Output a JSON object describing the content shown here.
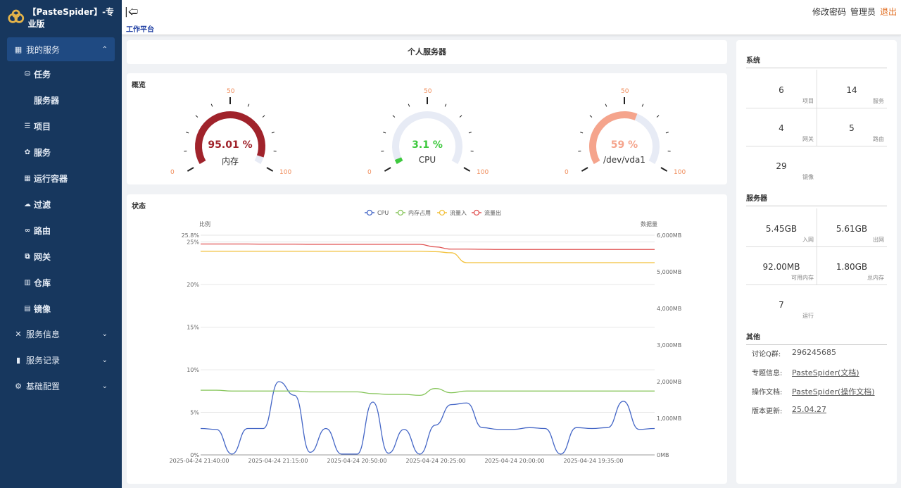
{
  "brand": {
    "title": "【PasteSpider】-专业版"
  },
  "sidebar": {
    "group_services": "我的服务",
    "items": [
      {
        "label": "任务",
        "icon": "database-icon"
      },
      {
        "label": "服务器",
        "icon": ""
      },
      {
        "label": "项目",
        "icon": "list-icon"
      },
      {
        "label": "服务",
        "icon": "ribbon-icon"
      },
      {
        "label": "运行容器",
        "icon": "grid-icon"
      },
      {
        "label": "过滤",
        "icon": "cloud-icon"
      },
      {
        "label": "路由",
        "icon": "link-icon"
      },
      {
        "label": "网关",
        "icon": "external-icon"
      },
      {
        "label": "仓库",
        "icon": "archive-icon"
      },
      {
        "label": "镜像",
        "icon": "bag-icon"
      }
    ],
    "group_info": "服务信息",
    "group_records": "服务记录",
    "group_config": "基础配置"
  },
  "topbar": {
    "breadcrumb": "工作平台",
    "change_password": "修改密码",
    "admin": "管理员",
    "logout": "退出"
  },
  "main": {
    "title": "个人服务器",
    "overview": "概览",
    "status": "状态"
  },
  "gauges": [
    {
      "value": "95.01 %",
      "level": 95.01,
      "name": "内存",
      "color": "#a0232b",
      "min": "0",
      "mid": "50",
      "max": "100"
    },
    {
      "value": "3.1 %",
      "level": 3.1,
      "name": "CPU",
      "color": "#3ec93e",
      "min": "0",
      "mid": "50",
      "max": "100"
    },
    {
      "value": "59 %",
      "level": 59,
      "name": "/dev/vda1",
      "color": "#f5a48c",
      "min": "0",
      "mid": "50",
      "max": "100"
    }
  ],
  "chart_data": {
    "type": "line",
    "legend": [
      "CPU",
      "内存占用",
      "流量入",
      "流量出"
    ],
    "ylabel_left": "比例",
    "ylabel_right": "数据量",
    "y_left_ticks": [
      "25.8%",
      "25%",
      "20%",
      "15%",
      "10%",
      "5%",
      "0%"
    ],
    "y_right_ticks": [
      "6,000MB",
      "5,000MB",
      "4,000MB",
      "3,000MB",
      "2,000MB",
      "1,000MB",
      "0MB"
    ],
    "y_left_values": [
      25.8,
      25,
      20,
      15,
      10,
      5,
      0
    ],
    "y_right_values": [
      6000,
      5000,
      4000,
      3000,
      2000,
      1000,
      0
    ],
    "ylim_left": [
      0,
      25.8
    ],
    "ylim_right": [
      0,
      6000
    ],
    "x_labels": [
      "2025-04-24 21:40:00",
      "2025-04-24 21:15:00",
      "2025-04-24 20:50:00",
      "2025-04-24 20:25:00",
      "2025-04-24 20:00:00",
      "2025-04-24 19:35:00"
    ],
    "series": [
      {
        "name": "CPU",
        "color": "#4466c6",
        "axis": "left",
        "values": [
          3.1,
          3.0,
          0.1,
          3.1,
          3.1,
          8.6,
          7.0,
          0.3,
          3.1,
          0.1,
          0.1,
          6.2,
          0.2,
          3.0,
          0.1,
          3.5,
          5.9,
          6.1,
          3.2,
          3.0,
          3.0,
          3.2,
          3.1,
          0.1,
          3.2,
          3.1,
          3.2,
          6.3,
          3.0,
          3.1
        ]
      },
      {
        "name": "内存占用",
        "color": "#86c55a",
        "axis": "left",
        "values": [
          7.6,
          7.6,
          7.5,
          7.5,
          7.5,
          7.5,
          7.5,
          7.4,
          7.4,
          7.4,
          7.4,
          7.2,
          7.1,
          7.1,
          7.0,
          7.8,
          7.3,
          7.5,
          7.5,
          7.5,
          7.5,
          7.5,
          7.5,
          7.5,
          7.5,
          7.5,
          7.5,
          7.5,
          7.5,
          7.5
        ]
      },
      {
        "name": "流量入",
        "color": "#f2c13b",
        "axis": "right",
        "values": [
          5560,
          5560,
          5560,
          5560,
          5560,
          5560,
          5560,
          5560,
          5560,
          5560,
          5560,
          5560,
          5560,
          5560,
          5560,
          5550,
          5520,
          5250,
          5250,
          5250,
          5250,
          5250,
          5250,
          5250,
          5250,
          5250,
          5250,
          5250,
          5250,
          5250
        ]
      },
      {
        "name": "流量出",
        "color": "#e05252",
        "axis": "right",
        "values": [
          5760,
          5760,
          5760,
          5760,
          5755,
          5755,
          5755,
          5750,
          5750,
          5750,
          5750,
          5750,
          5750,
          5750,
          5750,
          5680,
          5620,
          5620,
          5615,
          5610,
          5610,
          5610,
          5610,
          5610,
          5610,
          5610,
          5610,
          5610,
          5610,
          5610
        ]
      }
    ]
  },
  "right": {
    "system_title": "系统",
    "system": [
      {
        "num": "6",
        "label": "项目"
      },
      {
        "num": "14",
        "label": "服务"
      },
      {
        "num": "4",
        "label": "网关"
      },
      {
        "num": "5",
        "label": "路由"
      },
      {
        "num": "29",
        "label": "镜像"
      }
    ],
    "server_title": "服务器",
    "server": [
      {
        "num": "5.45GB",
        "label": "入网"
      },
      {
        "num": "5.61GB",
        "label": "出网"
      },
      {
        "num": "92.00MB",
        "label": "可用内存"
      },
      {
        "num": "1.80GB",
        "label": "总内存"
      },
      {
        "num": "7",
        "label": "运行"
      }
    ],
    "other_title": "其他",
    "other": [
      {
        "k": "讨论Q群:",
        "v": "296245685"
      },
      {
        "k": "专题信息:",
        "v": "PasteSpider(文档)"
      },
      {
        "k": "操作文档:",
        "v": "PasteSpider(操作文档)"
      },
      {
        "k": "版本更新:",
        "v": "25.04.27"
      }
    ]
  }
}
